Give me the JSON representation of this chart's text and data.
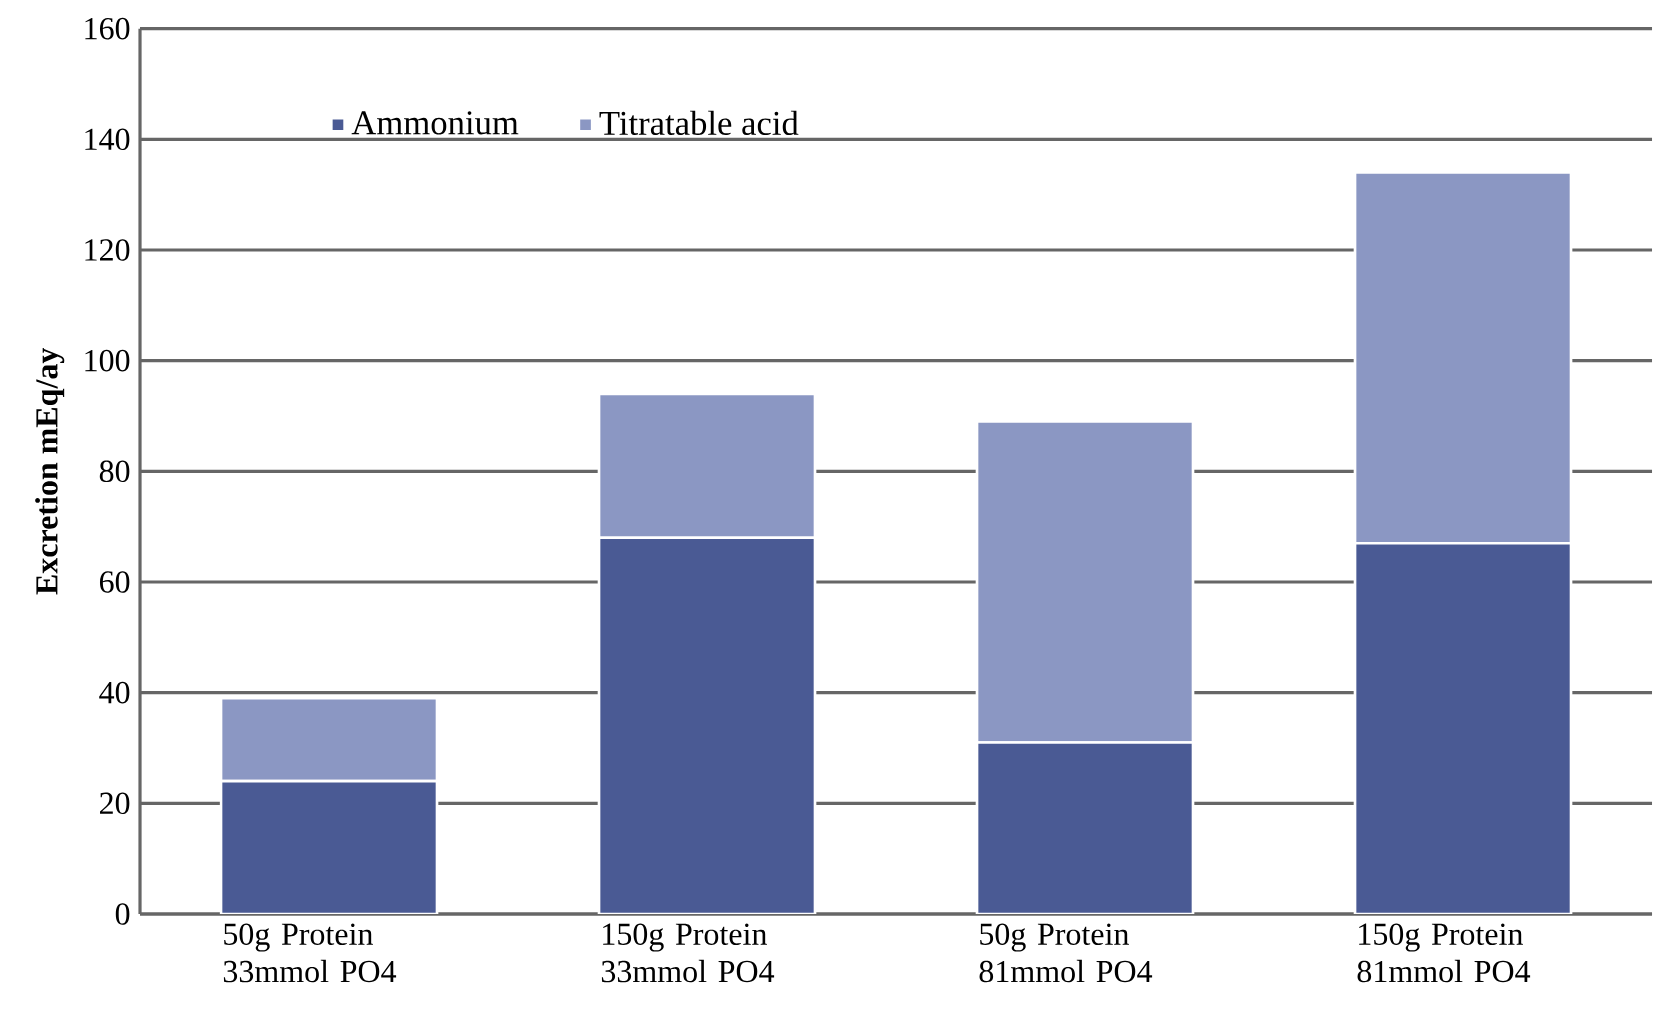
{
  "chart_data": {
    "type": "bar",
    "stacked": true,
    "ylabel": "Excretion mEq/ay",
    "categories": [
      "50g Protein 33mmol PO4",
      "150g Protein 33mmol PO4",
      "50g Protein 81mmol PO4",
      "150g Protein 81mmol PO4"
    ],
    "series": [
      {
        "name": "Ammonium",
        "color": "#4a5a94",
        "values": [
          24,
          68,
          31,
          67
        ]
      },
      {
        "name": "Titratable acid",
        "color": "#8b97c3",
        "values": [
          15,
          26,
          58,
          67
        ]
      }
    ],
    "ylim": [
      0,
      160
    ],
    "yticks": [
      0,
      20,
      40,
      60,
      80,
      100,
      120,
      140,
      160
    ],
    "grid": "y",
    "legend": "top left"
  }
}
